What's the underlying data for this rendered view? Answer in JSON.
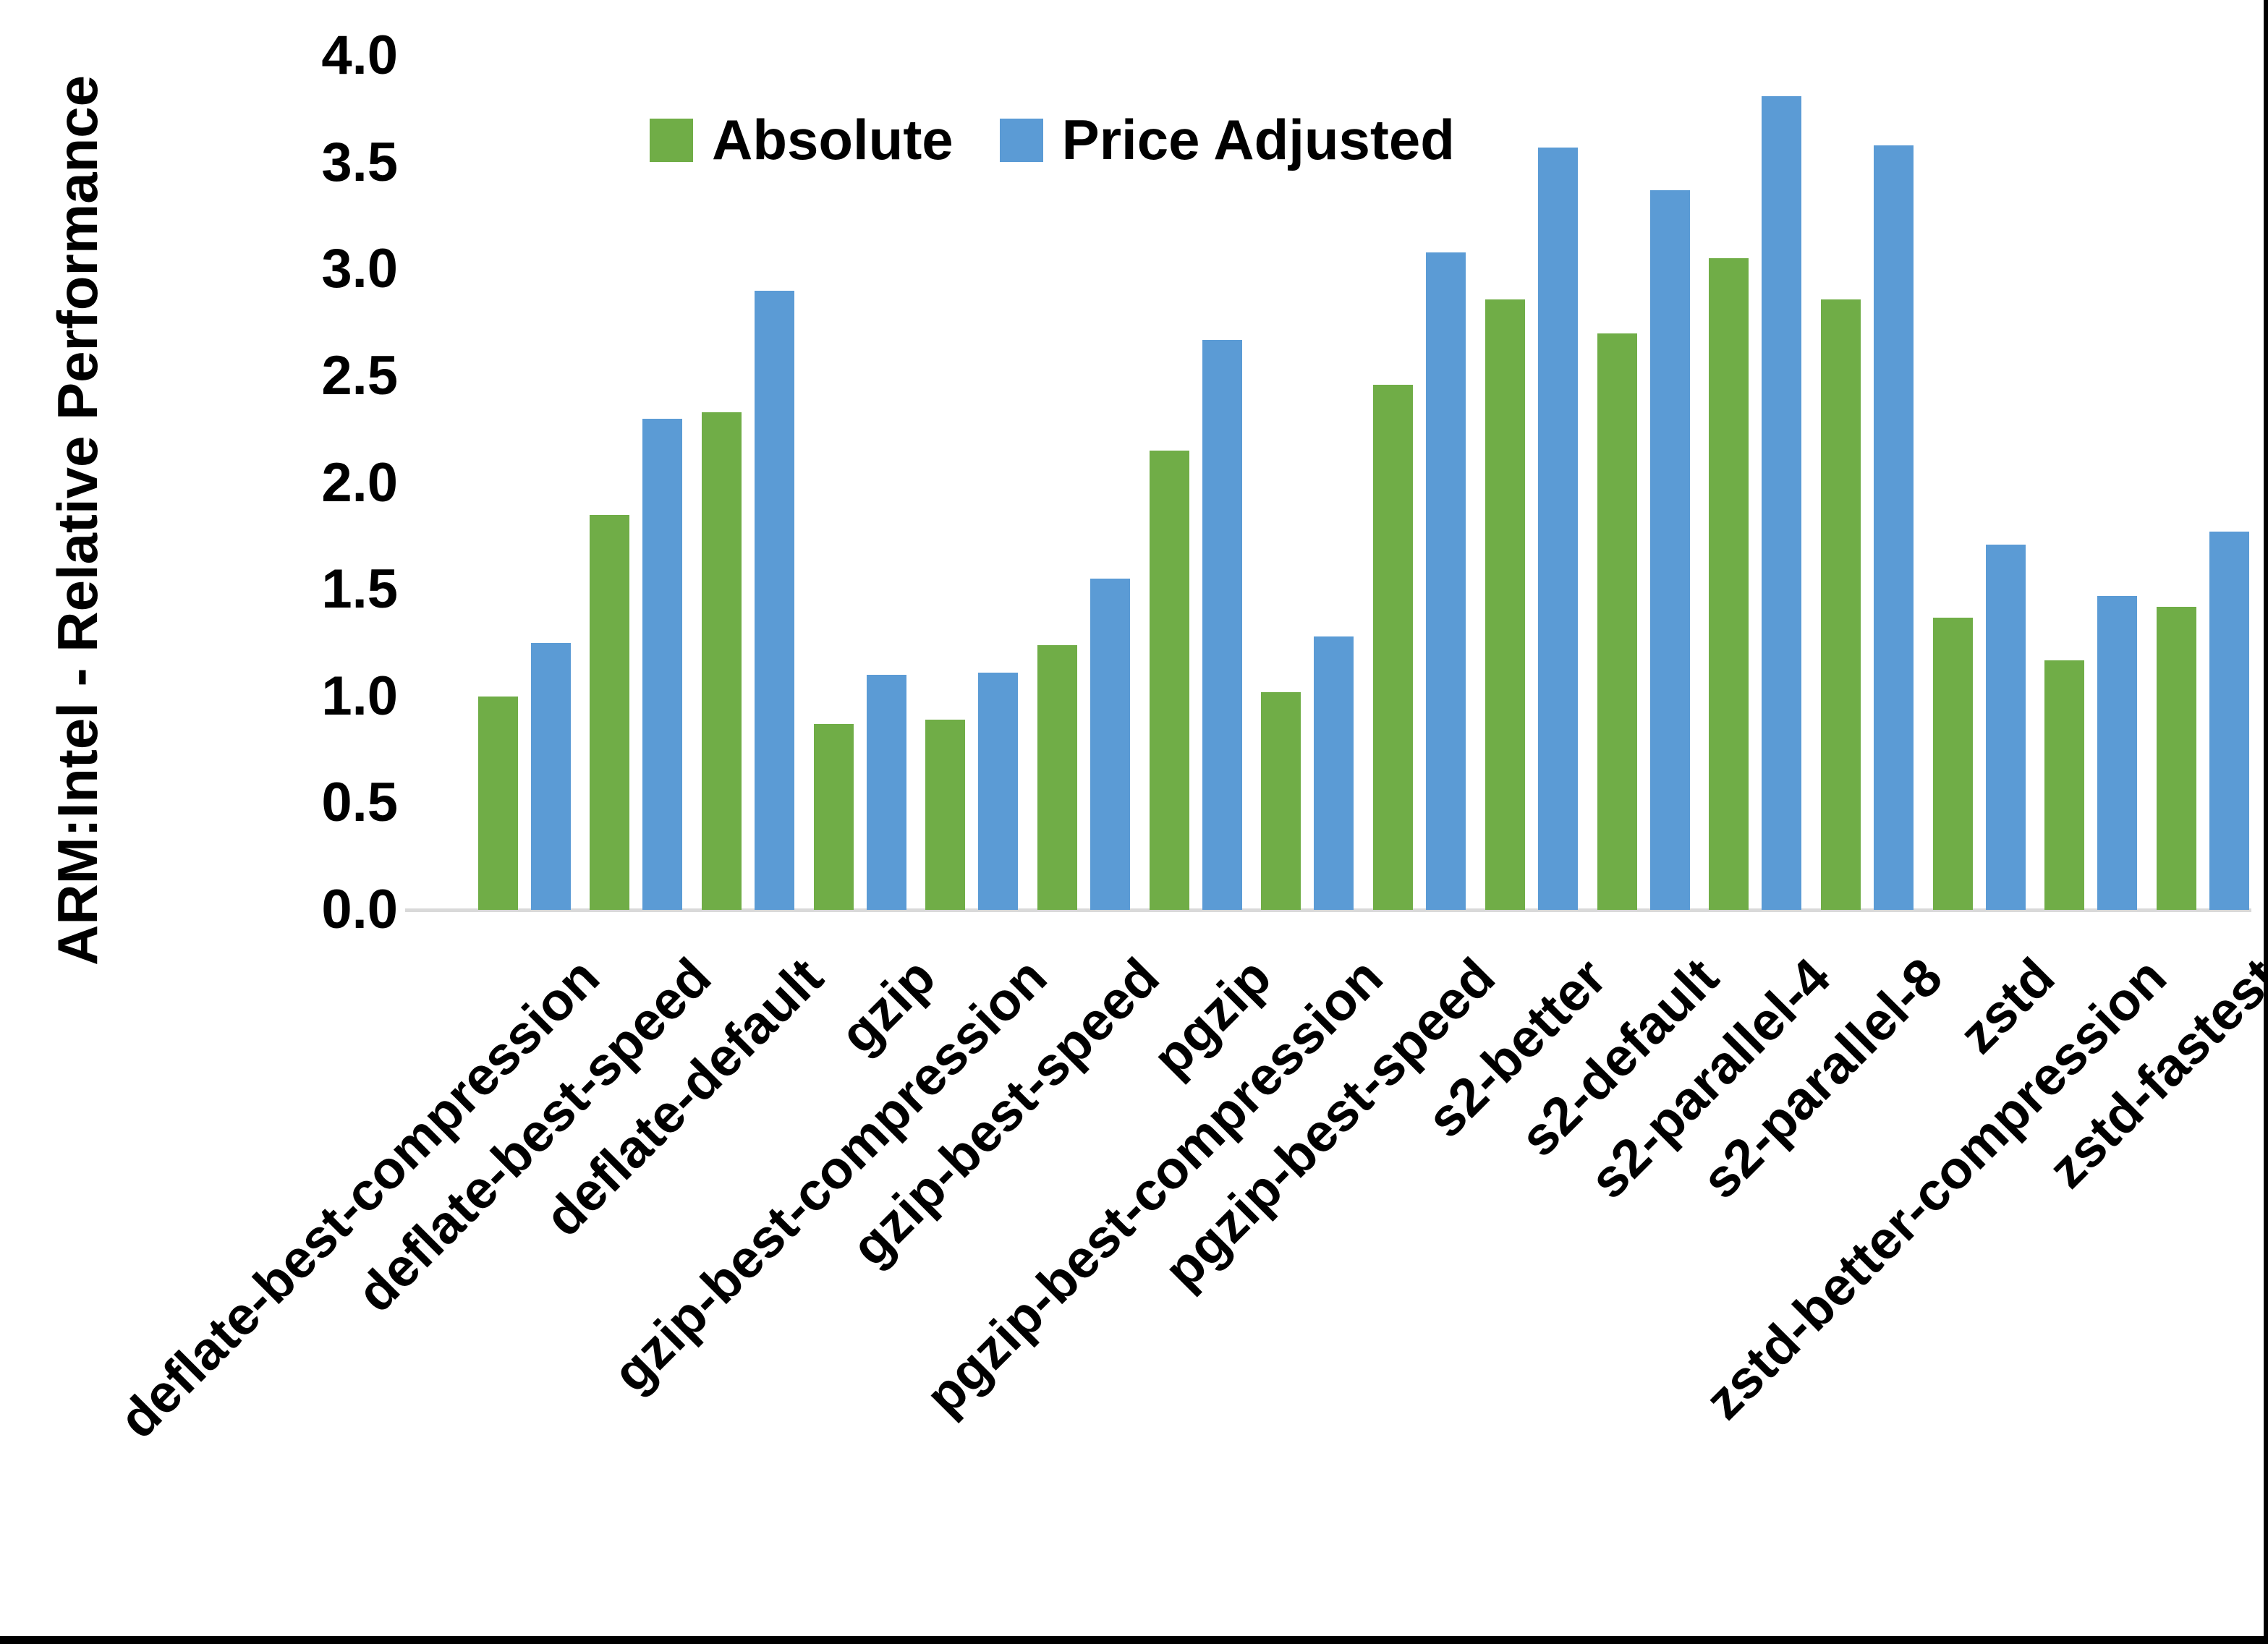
{
  "chart_data": {
    "type": "bar",
    "title": "",
    "xlabel": "",
    "ylabel": "ARM:Intel - Relative Performance",
    "ylim": [
      0.0,
      4.0
    ],
    "ytick_step": 0.5,
    "ytick_labels": [
      "0.0",
      "0.5",
      "1.0",
      "1.5",
      "2.0",
      "2.5",
      "3.0",
      "3.5",
      "4.0"
    ],
    "grid": false,
    "legend_position": "top-center",
    "categories": [
      "deflate-best-compression",
      "deflate-best-speed",
      "deflate-default",
      "gzip",
      "gzip-best-compression",
      "gzip-best-speed",
      "pgzip",
      "pgzip-best-compression",
      "pgzip-best-speed",
      "s2-better",
      "s2-default",
      "s2-parallel-4",
      "s2-parallel-8",
      "zstd",
      "zstd-better-compression",
      "zstd-fastest"
    ],
    "series": [
      {
        "name": "Absolute",
        "color": "#70AD47",
        "values": [
          1.0,
          1.85,
          2.33,
          0.87,
          0.89,
          1.24,
          2.15,
          1.02,
          2.46,
          2.86,
          2.7,
          3.05,
          2.86,
          1.37,
          1.17,
          1.42
        ]
      },
      {
        "name": "Price Adjusted",
        "color": "#5B9BD5",
        "values": [
          1.25,
          2.3,
          2.9,
          1.1,
          1.11,
          1.55,
          2.67,
          1.28,
          3.08,
          3.57,
          3.37,
          3.81,
          3.58,
          1.71,
          1.47,
          1.77
        ]
      }
    ]
  },
  "colors": {
    "background": "#FFFFFF",
    "axis_line": "#D9D9D9",
    "text": "#000000",
    "crop_border": "#000000"
  }
}
